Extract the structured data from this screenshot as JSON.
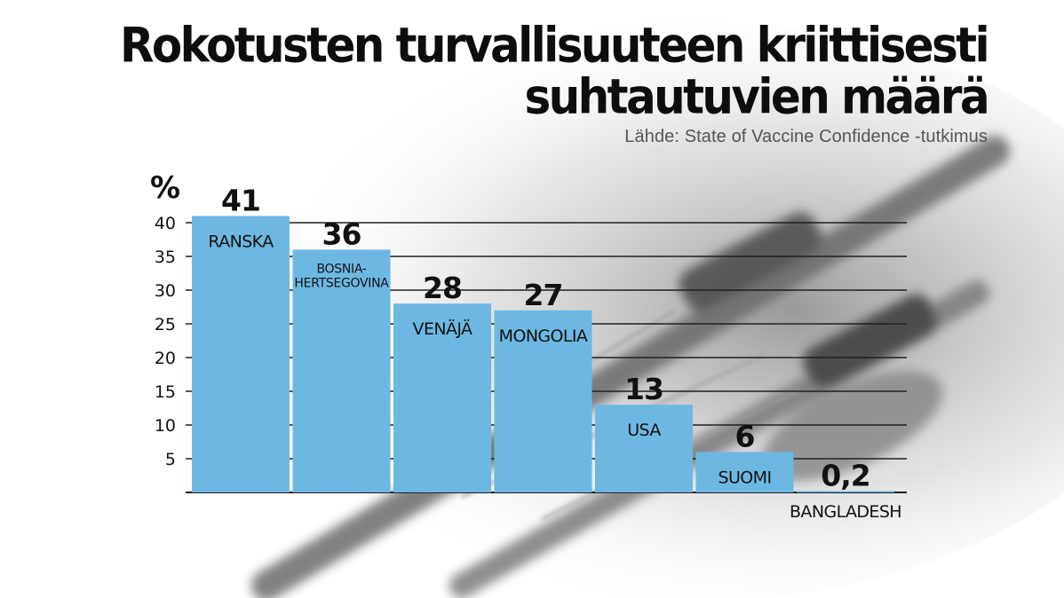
{
  "title_lines": [
    "Rokotusten turvallisuuteen kriittisesti",
    "suhtautuvien määrä"
  ],
  "subtitle": "Lähde: State of Vaccine Confidence -tutkimus",
  "colors": {
    "bar": "#6db8e3",
    "bar_gap": "#ffffff",
    "gridline": "#1f1f1f",
    "text": "#111111",
    "subtitle": "#555555"
  },
  "chart_data": {
    "type": "bar",
    "ylabel": "%",
    "ylim": [
      0,
      41
    ],
    "yticks": [
      5,
      10,
      15,
      20,
      25,
      30,
      35,
      40
    ],
    "grid": true,
    "categories": [
      "RANSKA",
      "BOSNIA-HERTSEGOVINA",
      "VENÄJÄ",
      "MONGOLIA",
      "USA",
      "SUOMI",
      "BANGLADESH"
    ],
    "category_label_lines": [
      [
        "RANSKA"
      ],
      [
        "BOSNIA-",
        "HERTSEGOVINA"
      ],
      [
        "VENÄJÄ"
      ],
      [
        "MONGOLIA"
      ],
      [
        "USA"
      ],
      [
        "SUOMI"
      ],
      [
        "BANGLADESH"
      ]
    ],
    "values": [
      41,
      36,
      28,
      27,
      13,
      6,
      0.2
    ],
    "value_labels": [
      "41",
      "36",
      "28",
      "27",
      "13",
      "6",
      "0,2"
    ]
  }
}
